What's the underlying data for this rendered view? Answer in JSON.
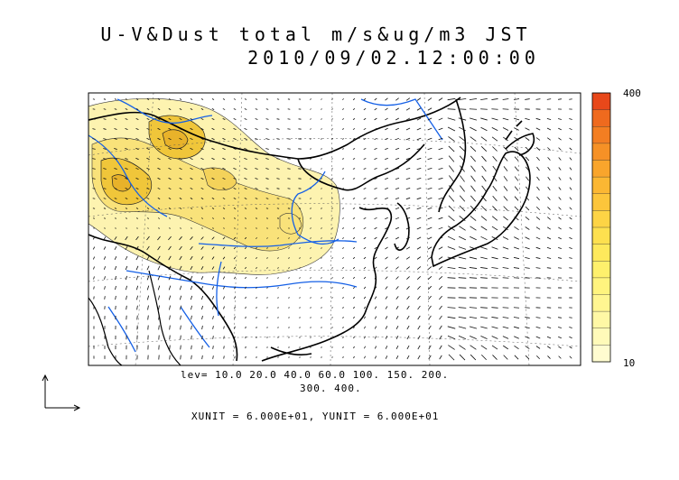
{
  "title": {
    "line1": "U-V&Dust total m/s&ug/m3 JST",
    "line2": "2010/09/02.12:00:00"
  },
  "colorbar": {
    "max_label": "400",
    "min_label": "10",
    "colors": [
      "#e8481a",
      "#ef6a1e",
      "#f37e22",
      "#f69126",
      "#f9a52c",
      "#fbb733",
      "#fcc53b",
      "#fdd445",
      "#fde04f",
      "#fee95c",
      "#fef06c",
      "#fff47e",
      "#fff691",
      "#fff8a5",
      "#fffab9",
      "#fffcd0"
    ]
  },
  "contour_levels": {
    "line1": "lev= 10.0 20.0 40.0 60.0 100. 150. 200.",
    "line2": "300. 400."
  },
  "vector_units": {
    "text": "XUNIT = 6.000E+01, YUNIT = 6.000E+01"
  },
  "map_colors": {
    "dust_light": "#fdf3b0",
    "dust_mid": "#f9e27a",
    "dust_high": "#f0c63a",
    "rivers": "#1560e6",
    "coast": "#000000"
  }
}
